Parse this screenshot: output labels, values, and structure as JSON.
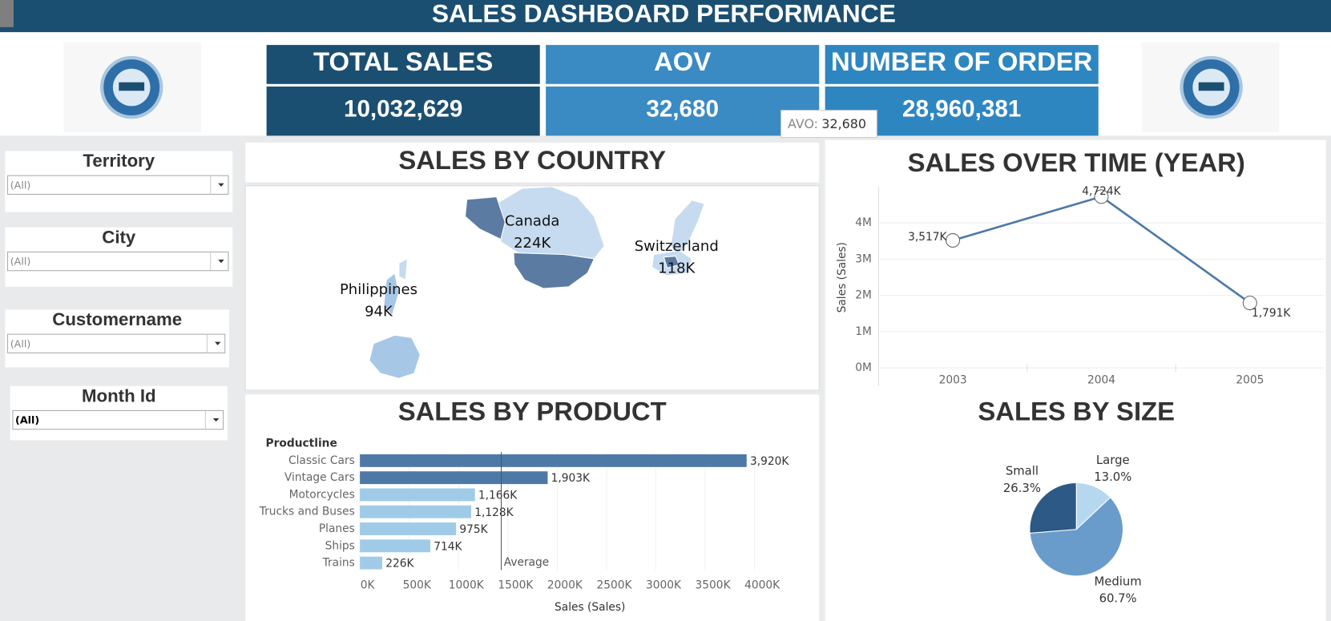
{
  "header": {
    "title": "SALES DASHBOARD PERFORMANCE"
  },
  "kpis": [
    {
      "label": "TOTAL SALES",
      "value": "10,032,629"
    },
    {
      "label": "AOV",
      "value": "32,680"
    },
    {
      "label": "NUMBER OF ORDER",
      "value": "28,960,381"
    }
  ],
  "tooltip": {
    "label": "AVO:",
    "value": "32,680"
  },
  "filters": [
    {
      "label": "Territory",
      "value": "(All)"
    },
    {
      "label": "City",
      "value": "(All)"
    },
    {
      "label": "Customername",
      "value": "(All)"
    },
    {
      "label": "Month Id",
      "value": "(All)"
    }
  ],
  "map": {
    "title": "SALES BY COUNTRY",
    "labels": [
      {
        "name": "Canada",
        "value": "224K"
      },
      {
        "name": "Switzerland",
        "value": "118K"
      },
      {
        "name": "Philippines",
        "value": "94K"
      }
    ]
  },
  "chart_data": [
    {
      "type": "line",
      "title": "SALES OVER TIME (YEAR)",
      "y_label": "Sales (Sales)",
      "categories": [
        "2003",
        "2004",
        "2005"
      ],
      "values": [
        3517000,
        4724000,
        1791000
      ],
      "value_labels": [
        "3,517K",
        "4,724K",
        "1,791K"
      ],
      "color": "#4e79a7",
      "ylim": [
        -500000,
        5000000
      ],
      "yticks": [
        {
          "value": 0,
          "label": "0M"
        },
        {
          "value": 1000000,
          "label": "1M"
        },
        {
          "value": 2000000,
          "label": "2M"
        },
        {
          "value": 3000000,
          "label": "3M"
        },
        {
          "value": 4000000,
          "label": "4M"
        }
      ],
      "grid": true
    },
    {
      "type": "bar",
      "title": "SALES BY PRODUCT",
      "y_label": "Productline",
      "x_label": "Sales (Sales)",
      "categories": [
        "Classic Cars",
        "Vintage Cars",
        "Motorcycles",
        "Trucks and Buses",
        "Planes",
        "Ships",
        "Trains"
      ],
      "values": [
        3920000,
        1903000,
        1166000,
        1128000,
        975000,
        714000,
        226000
      ],
      "value_labels": [
        "3,920K",
        "1,903K",
        "1,166K",
        "1,128K",
        "975K",
        "714K",
        "226K"
      ],
      "colors": [
        "#4e79a7",
        "#4e79a7",
        "#a0cbe8",
        "#a0cbe8",
        "#a0cbe8",
        "#a0cbe8",
        "#a0cbe8"
      ],
      "xlim": [
        0,
        4500000
      ],
      "xticks": [
        {
          "value": 0,
          "label": "0K"
        },
        {
          "value": 500000,
          "label": "500K"
        },
        {
          "value": 1000000,
          "label": "1000K"
        },
        {
          "value": 1500000,
          "label": "1500K"
        },
        {
          "value": 2000000,
          "label": "2000K"
        },
        {
          "value": 2500000,
          "label": "2500K"
        },
        {
          "value": 3000000,
          "label": "3000K"
        },
        {
          "value": 3500000,
          "label": "3500K"
        },
        {
          "value": 4000000,
          "label": "4000K"
        }
      ],
      "reference_line": {
        "label": "Average",
        "value": 1433000
      }
    },
    {
      "type": "pie",
      "title": "SALES BY SIZE",
      "categories": [
        "Large",
        "Medium",
        "Small"
      ],
      "values": [
        13.0,
        60.7,
        26.3
      ],
      "value_labels": [
        "13.0%",
        "60.7%",
        "26.3%"
      ],
      "colors": [
        "#b5d8f0",
        "#6a9ccb",
        "#2c5985"
      ]
    }
  ]
}
